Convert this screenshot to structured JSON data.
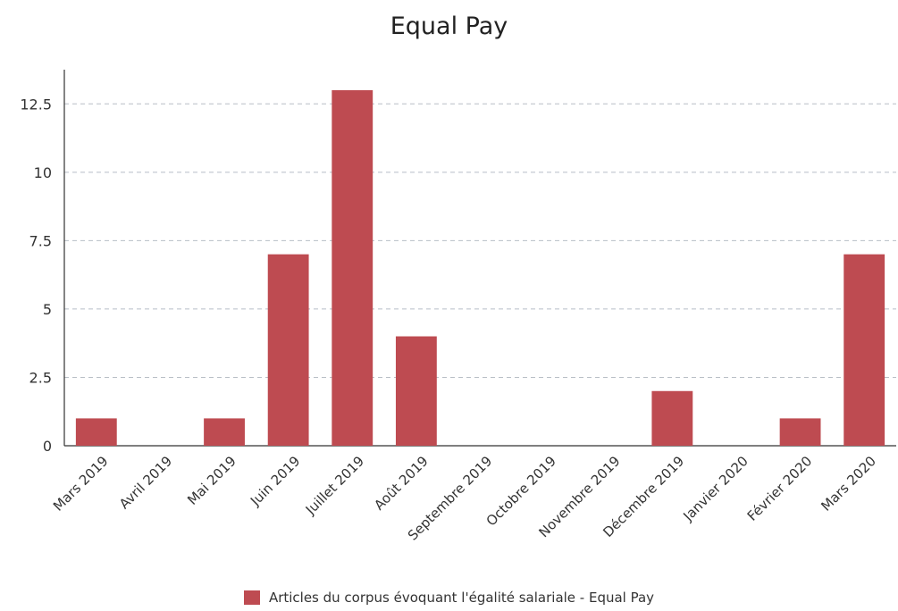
{
  "colors": {
    "bar": "#be4b51",
    "grid": "#b8bec6",
    "axis": "#333333",
    "text": "#333333"
  },
  "chart_data": {
    "type": "bar",
    "title": "Equal Pay",
    "xlabel": "",
    "ylabel": "",
    "categories": [
      "Mars 2019",
      "Avril 2019",
      "Mai 2019",
      "Juin 2019",
      "Juillet 2019",
      "Août 2019",
      "Septembre 2019",
      "Octobre 2019",
      "Novembre 2019",
      "Décembre 2019",
      "Janvier 2020",
      "Février 2020",
      "Mars 2020"
    ],
    "series": [
      {
        "name": "Articles du corpus évoquant l'égalité salariale - Equal Pay",
        "values": [
          1,
          0,
          1,
          7,
          13,
          4,
          0,
          0,
          0,
          2,
          0,
          1,
          7
        ]
      }
    ],
    "ylim": [
      0,
      13.75
    ],
    "yticks": [
      {
        "value": 0,
        "label": "0"
      },
      {
        "value": 2.5,
        "label": "2.5"
      },
      {
        "value": 5,
        "label": "5"
      },
      {
        "value": 7.5,
        "label": "7.5"
      },
      {
        "value": 10,
        "label": "10"
      },
      {
        "value": 12.5,
        "label": "12.5"
      }
    ],
    "grid": true,
    "legend_position": "bottom"
  }
}
